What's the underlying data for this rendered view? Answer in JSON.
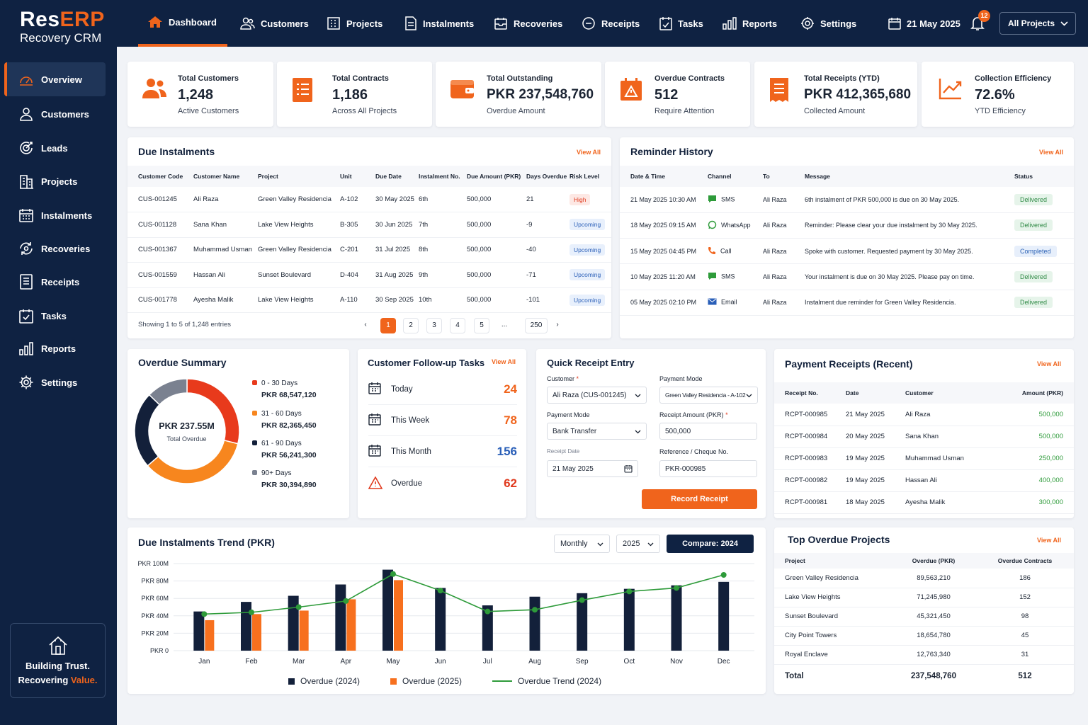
{
  "brand": {
    "name_a": "Res",
    "name_b": "ERP",
    "subtitle": "Recovery CRM"
  },
  "sidebar": {
    "items": [
      {
        "label": "Overview",
        "icon": "gauge-icon",
        "active": true
      },
      {
        "label": "Customers",
        "icon": "user-icon"
      },
      {
        "label": "Leads",
        "icon": "leads-icon"
      },
      {
        "label": "Projects",
        "icon": "building-icon"
      },
      {
        "label": "Instalments",
        "icon": "calendar-grid-icon"
      },
      {
        "label": "Recoveries",
        "icon": "recovery-icon"
      },
      {
        "label": "Receipts",
        "icon": "receipt-icon"
      },
      {
        "label": "Tasks",
        "icon": "task-icon"
      },
      {
        "label": "Reports",
        "icon": "bar-chart-icon"
      },
      {
        "label": "Settings",
        "icon": "gear-icon"
      }
    ],
    "footer": {
      "line1": "Building Trust.",
      "line2a": "Recovering ",
      "line2b": "Value."
    }
  },
  "topnav": {
    "items": [
      {
        "label": "Dashboard",
        "active": true
      },
      {
        "label": "Customers"
      },
      {
        "label": "Projects"
      },
      {
        "label": "Instalments"
      },
      {
        "label": "Recoveries"
      },
      {
        "label": "Receipts"
      },
      {
        "label": "Tasks"
      },
      {
        "label": "Reports"
      },
      {
        "label": "Settings"
      }
    ],
    "date": "21 May 2025",
    "notifications": "12",
    "project_filter": "All Projects"
  },
  "kpis": [
    {
      "label": "Total Customers",
      "value": "1,248",
      "sub": "Active Customers",
      "icon": "users-icon"
    },
    {
      "label": "Total Contracts",
      "value": "1,186",
      "sub": "Across All Projects",
      "icon": "contract-icon"
    },
    {
      "label": "Total Outstanding",
      "value": "PKR 237,548,760",
      "sub": "Overdue Amount",
      "icon": "wallet-icon"
    },
    {
      "label": "Overdue Contracts",
      "value": "512",
      "sub": "Require Attention",
      "icon": "calendar-alert-icon"
    },
    {
      "label": "Total Receipts (YTD)",
      "value": "PKR 412,365,680",
      "sub": "Collected Amount",
      "icon": "receipt-icon"
    },
    {
      "label": "Collection Efficiency",
      "value": "72.6%",
      "sub": "YTD Efficiency",
      "icon": "trend-icon"
    }
  ],
  "due": {
    "title": "Due Instalments",
    "view_all": "View All",
    "headers": [
      "Customer Code",
      "Customer Name",
      "Project",
      "Unit",
      "Due Date",
      "Instalment No.",
      "Due Amount (PKR)",
      "Days Overdue",
      "Risk Level"
    ],
    "rows": [
      [
        "CUS-001245",
        "Ali Raza",
        "Green Valley Residencia",
        "A-102",
        "30 May 2025",
        "6th",
        "500,000",
        "21",
        "High"
      ],
      [
        "CUS-001128",
        "Sana Khan",
        "Lake View Heights",
        "B-305",
        "30 Jun 2025",
        "7th",
        "500,000",
        "-9",
        "Upcoming"
      ],
      [
        "CUS-001367",
        "Muhammad Usman",
        "Green Valley Residencia",
        "C-201",
        "31 Jul 2025",
        "8th",
        "500,000",
        "-40",
        "Upcoming"
      ],
      [
        "CUS-001559",
        "Hassan Ali",
        "Sunset Boulevard",
        "D-404",
        "31 Aug 2025",
        "9th",
        "500,000",
        "-71",
        "Upcoming"
      ],
      [
        "CUS-001778",
        "Ayesha Malik",
        "Lake View Heights",
        "A-110",
        "30 Sep 2025",
        "10th",
        "500,000",
        "-101",
        "Upcoming"
      ]
    ],
    "showing": "Showing 1 to 5 of 1,248 entries",
    "pages": [
      "1",
      "2",
      "3",
      "4",
      "5",
      "...",
      "250"
    ],
    "prev": "‹",
    "next": "›"
  },
  "reminders": {
    "title": "Reminder History",
    "view_all": "View All",
    "headers": [
      "Date & Time",
      "Channel",
      "To",
      "Message",
      "Status"
    ],
    "rows": [
      [
        "21 May 2025  10:30 AM",
        "SMS",
        "Ali Raza",
        "6th instalment of PKR 500,000 is due on 30 May 2025.",
        "Delivered"
      ],
      [
        "18 May 2025  09:15 AM",
        "WhatsApp",
        "Ali Raza",
        "Reminder: Please clear your due instalment by 30 May 2025.",
        "Delivered"
      ],
      [
        "15 May 2025  04:45 PM",
        "Call",
        "Ali Raza",
        "Spoke with customer. Requested payment by 30 May 2025.",
        "Completed"
      ],
      [
        "10 May 2025  11:20 AM",
        "SMS",
        "Ali Raza",
        "Your instalment is due on 30 May 2025. Please pay on time.",
        "Delivered"
      ],
      [
        "05 May 2025  02:10 PM",
        "Email",
        "Ali Raza",
        "Instalment due reminder for Green Valley Residencia.",
        "Delivered"
      ]
    ]
  },
  "overdue": {
    "title": "Overdue Summary",
    "center_value": "PKR 237.55M",
    "center_label": "Total Overdue",
    "segments": [
      {
        "label": "0 - 30 Days",
        "amount": "PKR 68,547,120",
        "value": 68547120,
        "color": "#e83a1c"
      },
      {
        "label": "31 - 60 Days",
        "amount": "PKR 82,365,450",
        "value": 82365450,
        "color": "#f7861e"
      },
      {
        "label": "61 - 90 Days",
        "amount": "PKR 56,241,300",
        "value": 56241300,
        "color": "#13203a"
      },
      {
        "label": "90+ Days",
        "amount": "PKR 30,394,890",
        "value": 30394890,
        "color": "#7a8190"
      }
    ]
  },
  "tasks": {
    "title": "Customer Follow-up Tasks",
    "view_all": "View All",
    "rows": [
      {
        "label": "Today",
        "count": "24",
        "color": "#f0641c"
      },
      {
        "label": "This Week",
        "count": "78",
        "color": "#f0641c"
      },
      {
        "label": "This Month",
        "count": "156",
        "color": "#2a5fb8"
      },
      {
        "label": "Overdue",
        "count": "62",
        "color": "#e03a1e"
      }
    ]
  },
  "quick": {
    "title": "Quick Receipt Entry",
    "customer_label": "Customer",
    "customer_value": "Ali Raza (CUS-001245)",
    "mode_label_1": "Payment Mode",
    "project_value": "Green Valley Residencia - A-102",
    "mode_label_2": "Payment Mode",
    "mode_value": "Bank Transfer",
    "amount_label": "Receipt Amount (PKR)",
    "amount_value": "500,000",
    "date_label": "Receipt Date",
    "date_value": "21 May 2025",
    "ref_label": "Reference / Cheque No.",
    "ref_value": "PKR-000985",
    "button": "Record Receipt",
    "required": "*"
  },
  "receipts": {
    "title": "Payment Receipts (Recent)",
    "view_all": "View All",
    "headers": [
      "Receipt No.",
      "Date",
      "Customer",
      "Amount (PKR)"
    ],
    "rows": [
      [
        "RCPT-000985",
        "21 May 2025",
        "Ali Raza",
        "500,000"
      ],
      [
        "RCPT-000984",
        "20 May 2025",
        "Sana Khan",
        "500,000"
      ],
      [
        "RCPT-000983",
        "19 May 2025",
        "Muhammad Usman",
        "250,000"
      ],
      [
        "RCPT-000982",
        "19 May 2025",
        "Hassan Ali",
        "400,000"
      ],
      [
        "RCPT-000981",
        "18 May 2025",
        "Ayesha Malik",
        "300,000"
      ]
    ]
  },
  "trend": {
    "title": "Due Instalments Trend (PKR)",
    "period": "Monthly",
    "year": "2025",
    "compare": "Compare: 2024"
  },
  "chart_data": {
    "type": "bar",
    "categories": [
      "Jan",
      "Feb",
      "Mar",
      "Apr",
      "May",
      "Jun",
      "Jul",
      "Aug",
      "Sep",
      "Oct",
      "Nov",
      "Dec"
    ],
    "series": [
      {
        "name": "Overdue (2024)",
        "type": "bar",
        "color": "#13203a",
        "values": [
          45,
          56,
          63,
          76,
          93,
          72,
          52,
          62,
          66,
          71,
          75,
          79
        ]
      },
      {
        "name": "Overdue (2025)",
        "type": "bar",
        "color": "#f7701e",
        "values": [
          35,
          42,
          46,
          59,
          81,
          null,
          null,
          null,
          null,
          null,
          null,
          null
        ]
      },
      {
        "name": "Overdue Trend (2024)",
        "type": "line",
        "color": "#2e9b3a",
        "values": [
          42,
          44,
          50,
          57,
          88,
          69,
          45,
          47,
          58,
          68,
          72,
          87
        ]
      }
    ],
    "yticks": [
      "PKR 0",
      "PKR 20M",
      "PKR 40M",
      "PKR 60M",
      "PKR 80M",
      "PKR 100M"
    ],
    "ylim": [
      0,
      100
    ],
    "yunit": "PKR M"
  },
  "top": {
    "title": "Top Overdue Projects",
    "view_all": "View All",
    "headers": [
      "Project",
      "Overdue (PKR)",
      "Overdue Contracts"
    ],
    "rows": [
      [
        "Green Valley Residencia",
        "89,563,210",
        "186"
      ],
      [
        "Lake View Heights",
        "71,245,980",
        "152"
      ],
      [
        "Sunset Boulevard",
        "45,321,450",
        "98"
      ],
      [
        "City Point Towers",
        "18,654,780",
        "45"
      ],
      [
        "Royal Enclave",
        "12,763,340",
        "31"
      ]
    ],
    "total": [
      "Total",
      "237,548,760",
      "512"
    ]
  }
}
